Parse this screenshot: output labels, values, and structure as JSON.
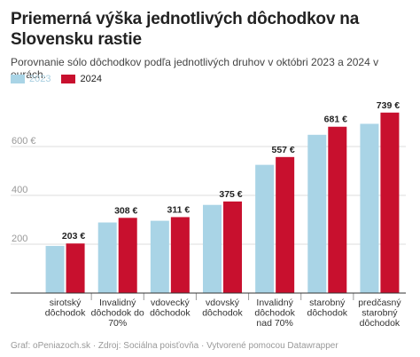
{
  "title": "Priemerná výška jednotlivých dôchodkov na Slovensku rastie",
  "subtitle": "Porovnanie sólo dôchodkov podľa jednotlivých druhov v októbri 2023 a 2024 v eurách.",
  "footer": "Graf: oPeniazoch.sk · Zdroj: Sociálna poisťovňa · Vytvorené pomocou Datawrapper",
  "colors": {
    "series_2023": "#a9d4e6",
    "series_2024": "#c8102e",
    "grid": "#dcdcdc",
    "axis": "#333333"
  },
  "chart_data": {
    "type": "bar",
    "categories": [
      [
        "sirotský",
        "dôchodok"
      ],
      [
        "Invalidný",
        "dôchodok do",
        "70%"
      ],
      [
        "vdovecký",
        "dôchodok"
      ],
      [
        "vdovský",
        "dôchodok"
      ],
      [
        "Invalidný",
        "dôchodok",
        "nad 70%"
      ],
      [
        "starobný",
        "dôchodok"
      ],
      [
        "predčasný",
        "starobný",
        "dôchodok"
      ]
    ],
    "series": [
      {
        "name": "2023",
        "values": [
          193,
          289,
          296,
          361,
          525,
          648,
          693
        ]
      },
      {
        "name": "2024",
        "values": [
          203,
          308,
          311,
          375,
          557,
          681,
          739
        ]
      }
    ],
    "data_labels_2024": [
      "203 €",
      "308 €",
      "311 €",
      "375 €",
      "557 €",
      "681 €",
      "739 €"
    ],
    "y_ticks": [
      200,
      400,
      600
    ],
    "y_tick_labels": [
      "200",
      "400",
      "600 €"
    ],
    "ylim": [
      0,
      760
    ],
    "grid": true,
    "legend": "top-left"
  }
}
